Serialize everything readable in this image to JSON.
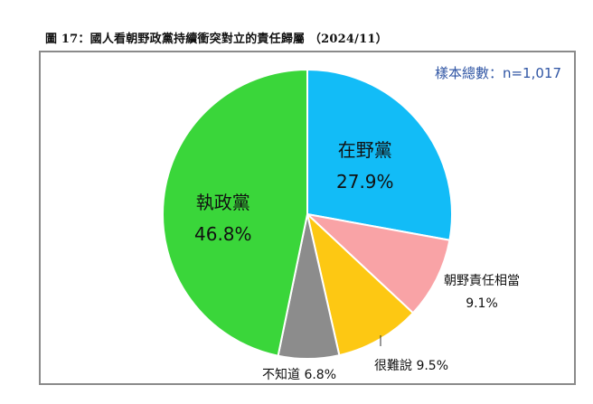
{
  "title": "圖 17：國人看朝野政黨持續衝突對立的責任歸屬 （2024/11）",
  "sample_size_label": "樣本總數：n=1,017",
  "slices": [
    {
      "name": "在野黨",
      "pct": "27.9%",
      "value": 27.9,
      "color": "#12bcf7"
    },
    {
      "name": "朝野責任相當",
      "pct": "9.1%",
      "value": 9.1,
      "color": "#f9a3a6"
    },
    {
      "name": "很難說",
      "pct": "9.5%",
      "value": 9.5,
      "color": "#fdc813"
    },
    {
      "name": "不知道",
      "pct": "6.8%",
      "value": 6.8,
      "color": "#8c8c8c"
    },
    {
      "name": "執政黨",
      "pct": "46.8%",
      "value": 46.8,
      "color": "#3ad63a"
    }
  ],
  "labels": {
    "hard_to_say": "很難說 9.5%",
    "dont_know": "不知道 6.8%"
  },
  "chart_data": {
    "type": "pie",
    "title": "圖 17：國人看朝野政黨持續衝突對立的責任歸屬 （2024/11）",
    "subtitle": "樣本總數：n=1,017",
    "categories": [
      "在野黨",
      "朝野責任相當",
      "很難說",
      "不知道",
      "執政黨"
    ],
    "values": [
      27.9,
      9.1,
      9.5,
      6.8,
      46.8
    ],
    "unit": "%",
    "colors": [
      "#12bcf7",
      "#f9a3a6",
      "#fdc813",
      "#8c8c8c",
      "#3ad63a"
    ],
    "start_angle": "12 o'clock, clockwise",
    "legend": "none (direct labels)"
  }
}
